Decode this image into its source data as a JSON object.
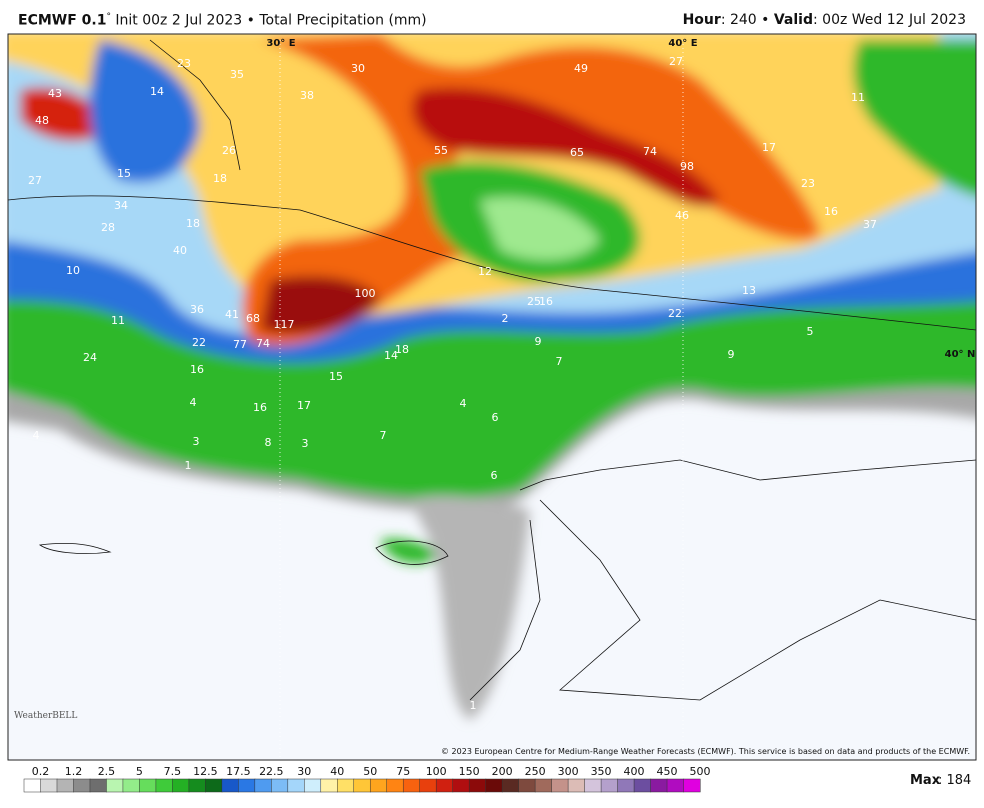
{
  "header": {
    "left": {
      "model": "ECMWF 0.1",
      "degree": "°",
      "rest": " Init 00z 2 Jul 2023 • Total Precipitation (mm)"
    },
    "right": {
      "hour_label": "Hour",
      "hour_value": ": 240 • ",
      "valid_label": "Valid",
      "valid_value": ": 00z Wed 12 Jul 2023"
    }
  },
  "map": {
    "labels": [
      "43",
      "48",
      "23",
      "35",
      "30",
      "49",
      "27",
      "11",
      "14",
      "38",
      "26",
      "15",
      "18",
      "55",
      "65",
      "74",
      "98",
      "17",
      "23",
      "27",
      "34",
      "28",
      "18",
      "16",
      "37",
      "46",
      "40",
      "10",
      "12",
      "100",
      "13",
      "25",
      "16",
      "36",
      "41",
      "68",
      "117",
      "11",
      "22",
      "5",
      "2",
      "22",
      "77",
      "74",
      "9",
      "18",
      "14",
      "7",
      "9",
      "24",
      "16",
      "15",
      "4",
      "16",
      "17",
      "4",
      "6",
      "4",
      "3",
      "8",
      "3",
      "7",
      "1",
      "6",
      "1"
    ],
    "graticule": [
      "30° E",
      "40° E",
      "40° N"
    ],
    "logo": "WeatherBELL",
    "copyright": "© 2023 European Centre for Medium-Range Weather Forecasts (ECMWF). This service is based on data and products of the ECMWF."
  },
  "colorbar": {
    "labels": [
      "0.2",
      "1.2",
      "2.5",
      "5",
      "7.5",
      "12.5",
      "17.5",
      "22.5",
      "30",
      "40",
      "50",
      "75",
      "100",
      "150",
      "200",
      "250",
      "300",
      "350",
      "400",
      "450",
      "500"
    ],
    "colors": [
      "#ffffff",
      "#d9d9d9",
      "#b4b4b4",
      "#8c8c8c",
      "#6e6e6e",
      "#b9f5b0",
      "#93ec8a",
      "#66dd5c",
      "#3fcb3a",
      "#24b024",
      "#158c1e",
      "#0d6a1a",
      "#1858c9",
      "#2a78e4",
      "#4f9bf0",
      "#7cbcf6",
      "#a4d6fa",
      "#cfeefc",
      "#fff2a8",
      "#ffe066",
      "#ffc637",
      "#ffa51e",
      "#ff8413",
      "#f8620f",
      "#e8400d",
      "#d02010",
      "#b00e10",
      "#8c0a0a",
      "#6a0a08",
      "#5a2a22",
      "#7e4a3e",
      "#a06a5c",
      "#c4928a",
      "#dcbcb6",
      "#d4c4dc",
      "#b4a0cc",
      "#9078b8",
      "#6c4ea0",
      "#8a1aa0",
      "#b00cc0",
      "#e000e0"
    ],
    "max_label": "Max",
    "max_value": ": 184"
  }
}
